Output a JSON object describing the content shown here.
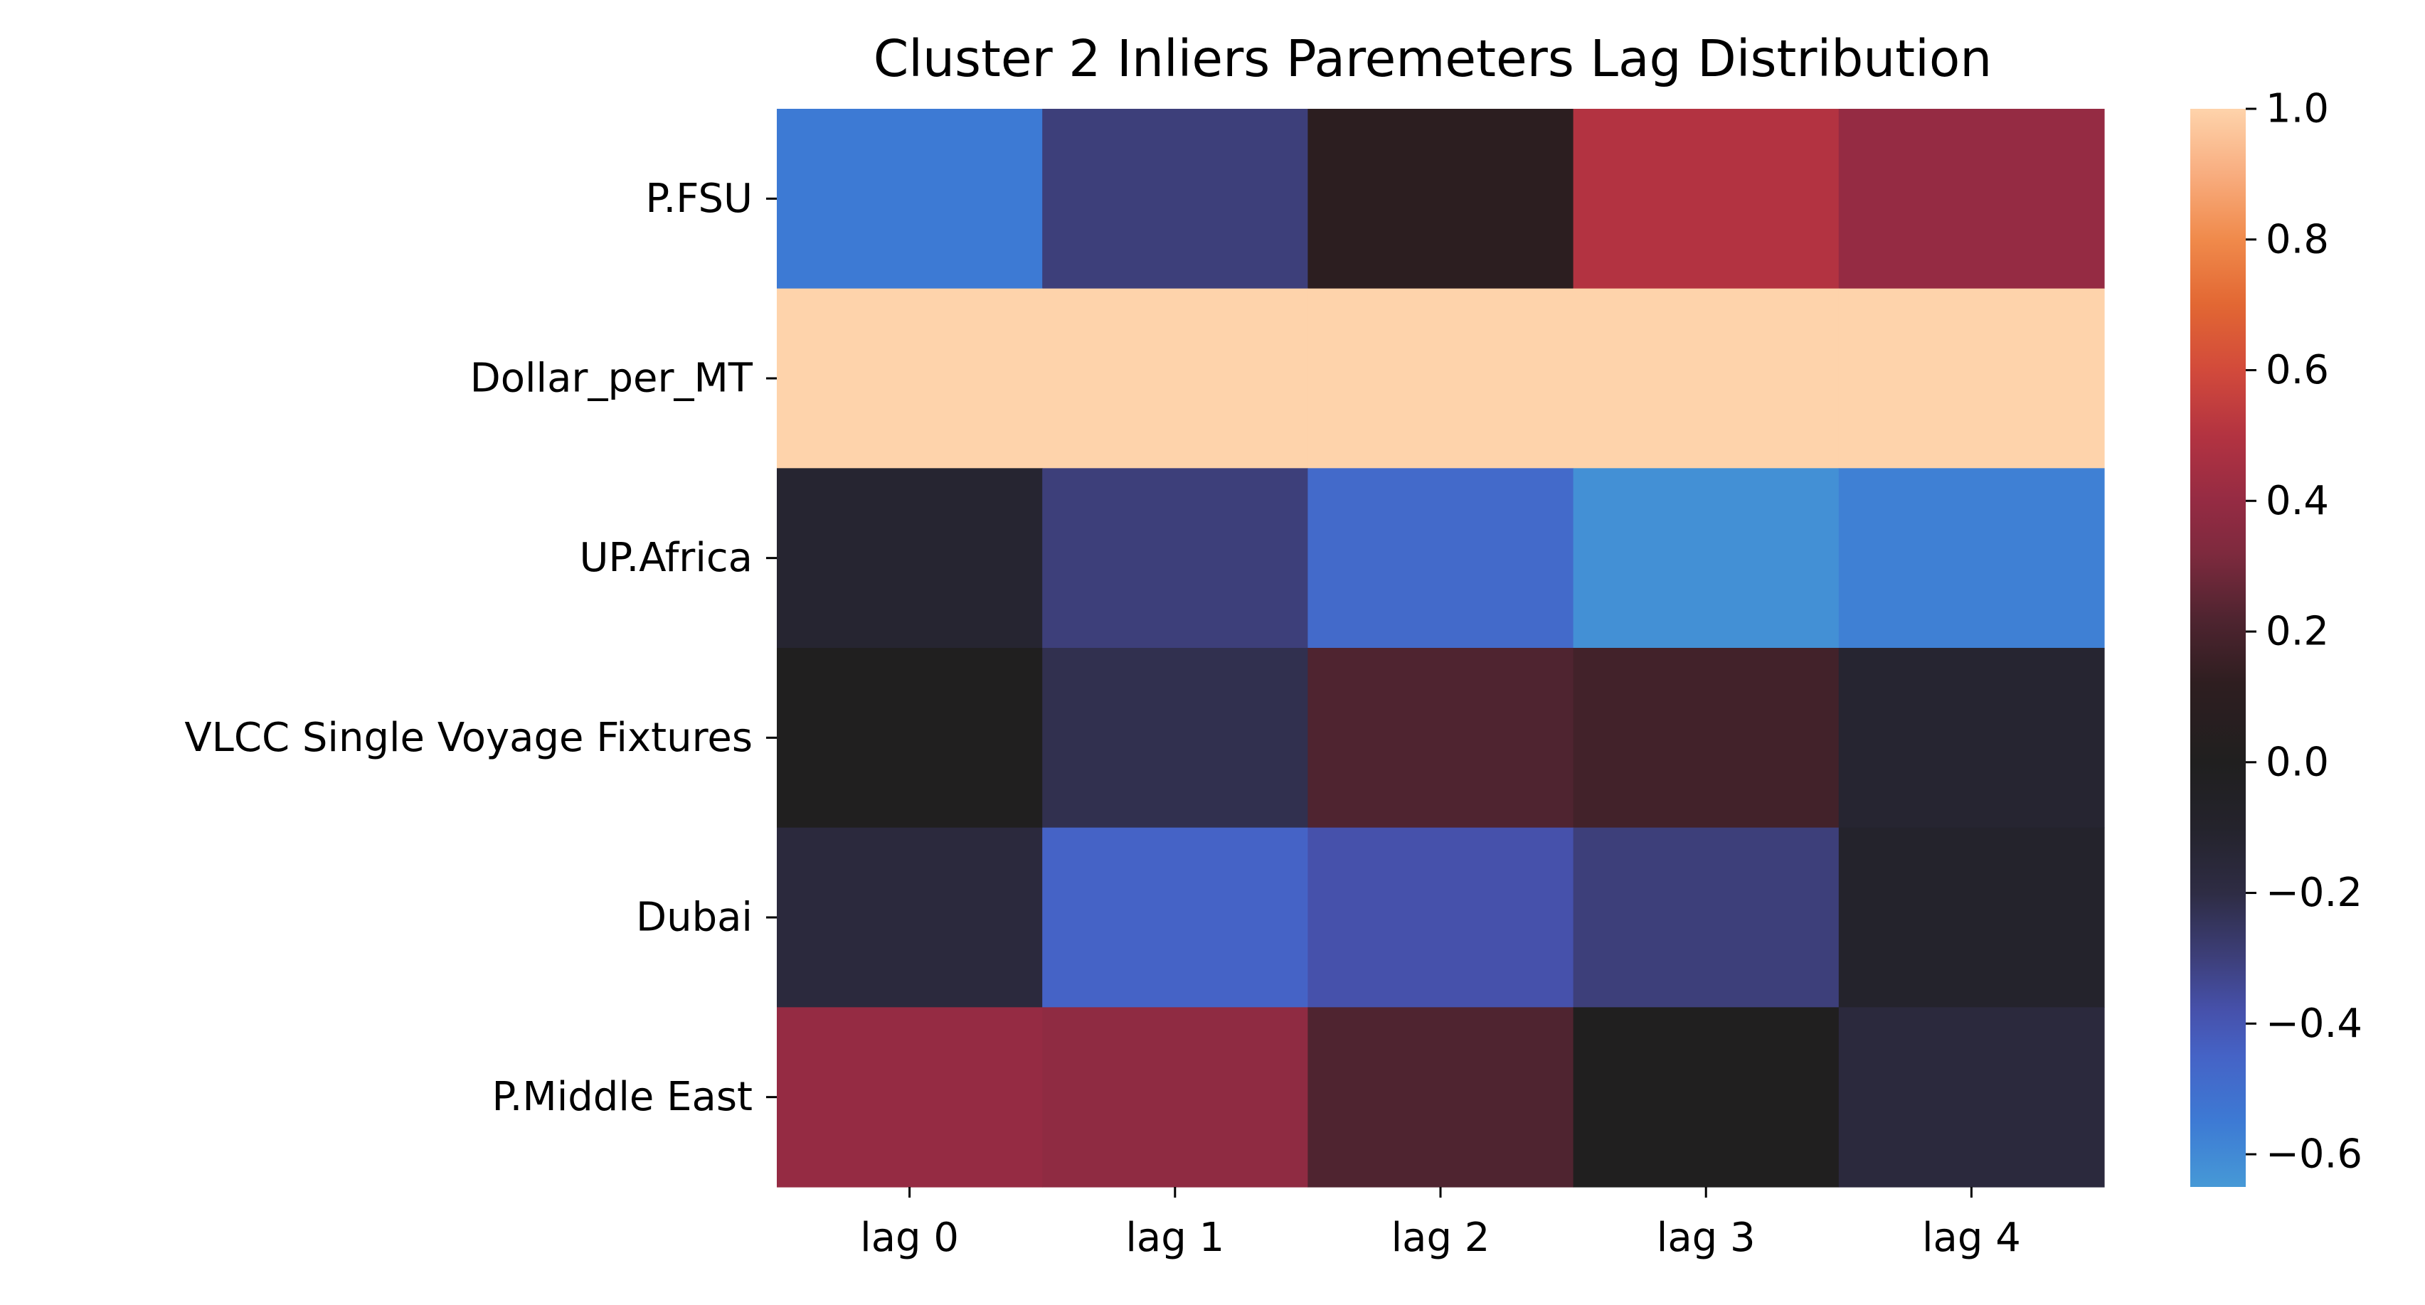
{
  "chart_data": {
    "type": "heatmap",
    "title": "Cluster 2 Inliers Paremeters Lag Distribution",
    "xlabel": "",
    "ylabel": "",
    "x_categories": [
      "lag 0",
      "lag 1",
      "lag 2",
      "lag 3",
      "lag 4"
    ],
    "y_categories": [
      "P.FSU",
      "Dollar_per_MT",
      "UP.Africa",
      "VLCC Single Voyage Fixtures",
      "Dubai",
      "P.Middle East"
    ],
    "values": [
      [
        -0.55,
        -0.3,
        0.1,
        0.5,
        0.4
      ],
      [
        1.0,
        1.0,
        1.0,
        1.0,
        1.0
      ],
      [
        -0.12,
        -0.3,
        -0.48,
        -0.62,
        -0.57
      ],
      [
        0.0,
        -0.22,
        0.22,
        0.18,
        -0.12
      ],
      [
        -0.17,
        -0.45,
        -0.38,
        -0.3,
        -0.1
      ],
      [
        0.4,
        0.38,
        0.22,
        0.0,
        -0.17
      ]
    ],
    "colorbar": {
      "range": [
        -0.65,
        1.0
      ],
      "ticks": [
        1.0,
        0.8,
        0.6,
        0.4,
        0.2,
        0.0,
        -0.2,
        -0.4,
        -0.6
      ],
      "tick_labels": [
        "1.0",
        "0.8",
        "0.6",
        "0.4",
        "0.2",
        "0.0",
        "−0.2",
        "−0.4",
        "−0.6"
      ]
    },
    "colormap": {
      "name": "icefire",
      "center": 0.0,
      "stops": [
        {
          "v": -0.65,
          "color": "#4699d6"
        },
        {
          "v": -0.55,
          "color": "#3d7ad4"
        },
        {
          "v": -0.45,
          "color": "#4563c6"
        },
        {
          "v": -0.38,
          "color": "#4651ab"
        },
        {
          "v": -0.3,
          "color": "#3d3f7a"
        },
        {
          "v": -0.2,
          "color": "#2e2c44"
        },
        {
          "v": -0.1,
          "color": "#24232c"
        },
        {
          "v": 0.0,
          "color": "#201f1f"
        },
        {
          "v": 0.12,
          "color": "#2e1e20"
        },
        {
          "v": 0.22,
          "color": "#4f2430"
        },
        {
          "v": 0.32,
          "color": "#7e2a3e"
        },
        {
          "v": 0.4,
          "color": "#952b43"
        },
        {
          "v": 0.5,
          "color": "#b33341"
        },
        {
          "v": 0.6,
          "color": "#d24a3b"
        },
        {
          "v": 0.7,
          "color": "#e26733"
        },
        {
          "v": 0.8,
          "color": "#f08a4b"
        },
        {
          "v": 0.9,
          "color": "#f8ad7f"
        },
        {
          "v": 1.0,
          "color": "#fed3ab"
        }
      ]
    }
  }
}
